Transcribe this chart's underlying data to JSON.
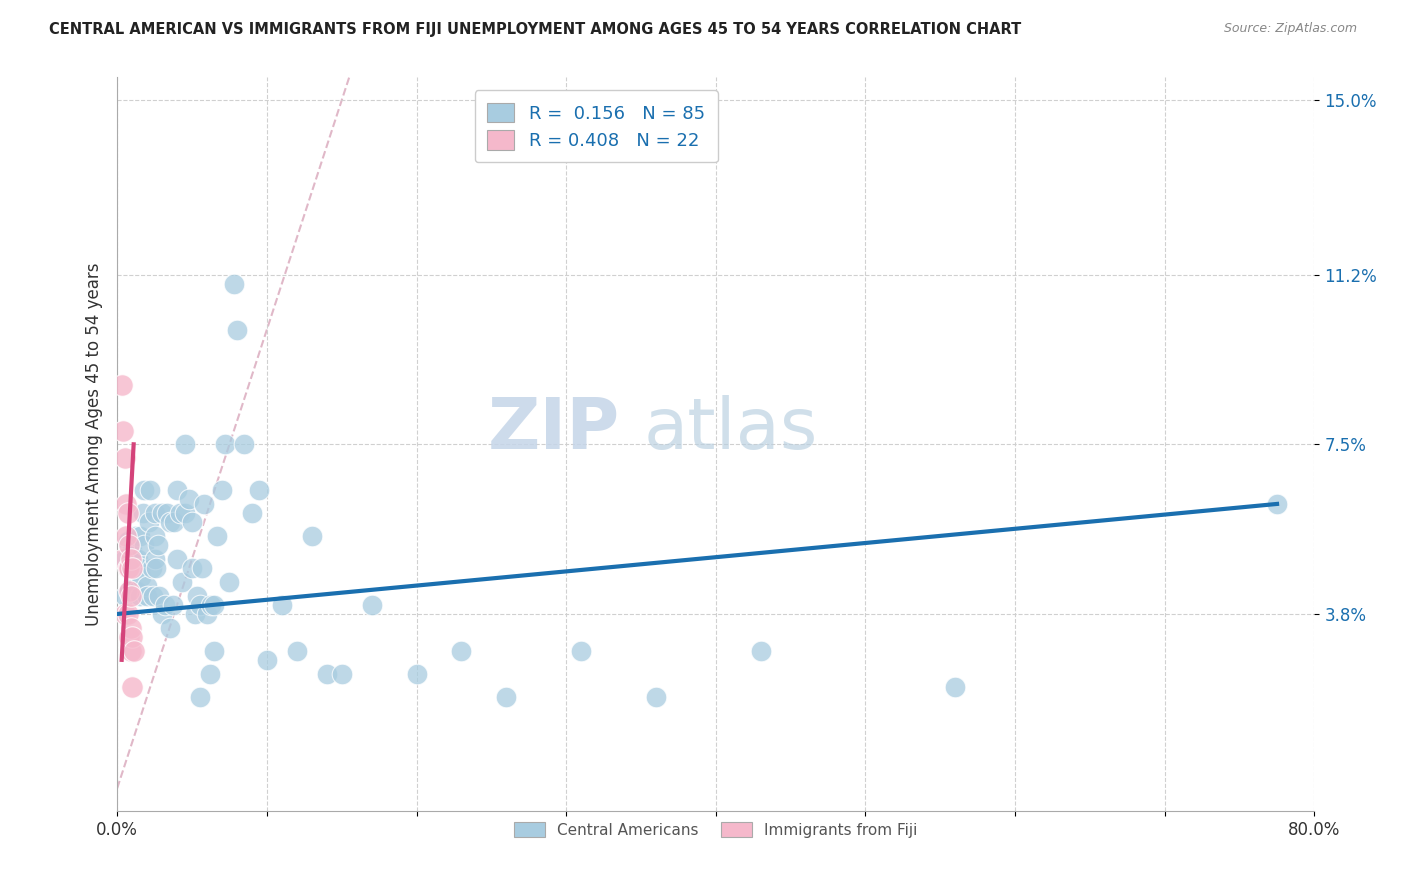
{
  "title": "CENTRAL AMERICAN VS IMMIGRANTS FROM FIJI UNEMPLOYMENT AMONG AGES 45 TO 54 YEARS CORRELATION CHART",
  "source": "Source: ZipAtlas.com",
  "ylabel": "Unemployment Among Ages 45 to 54 years",
  "legend_bottom": [
    "Central Americans",
    "Immigrants from Fiji"
  ],
  "xlim": [
    0.0,
    0.8
  ],
  "ylim": [
    -0.005,
    0.155
  ],
  "yticks": [
    0.038,
    0.075,
    0.112,
    0.15
  ],
  "ytick_labels": [
    "3.8%",
    "7.5%",
    "11.2%",
    "15.0%"
  ],
  "xticks": [
    0.0,
    0.1,
    0.2,
    0.3,
    0.4,
    0.5,
    0.6,
    0.7,
    0.8
  ],
  "xtick_labels": [
    "0.0%",
    "",
    "",
    "",
    "",
    "",
    "",
    "",
    "80.0%"
  ],
  "R_blue": 0.156,
  "N_blue": 85,
  "R_pink": 0.408,
  "N_pink": 22,
  "blue_color": "#a8cce0",
  "pink_color": "#f5b8cb",
  "blue_line_color": "#1a6faf",
  "pink_line_color": "#d4437a",
  "diagonal_color": "#e0b8c8",
  "watermark_zip": "ZIP",
  "watermark_atlas": "atlas",
  "blue_scatter_x": [
    0.005,
    0.005,
    0.007,
    0.008,
    0.008,
    0.009,
    0.01,
    0.01,
    0.01,
    0.01,
    0.012,
    0.012,
    0.013,
    0.014,
    0.015,
    0.015,
    0.015,
    0.016,
    0.017,
    0.018,
    0.018,
    0.02,
    0.02,
    0.021,
    0.022,
    0.023,
    0.024,
    0.025,
    0.025,
    0.025,
    0.026,
    0.027,
    0.028,
    0.03,
    0.03,
    0.032,
    0.033,
    0.035,
    0.035,
    0.037,
    0.038,
    0.04,
    0.04,
    0.042,
    0.043,
    0.045,
    0.045,
    0.048,
    0.05,
    0.05,
    0.052,
    0.053,
    0.055,
    0.055,
    0.057,
    0.058,
    0.06,
    0.062,
    0.063,
    0.065,
    0.065,
    0.067,
    0.07,
    0.072,
    0.075,
    0.078,
    0.08,
    0.085,
    0.09,
    0.095,
    0.1,
    0.11,
    0.12,
    0.13,
    0.14,
    0.15,
    0.17,
    0.2,
    0.23,
    0.26,
    0.31,
    0.36,
    0.43,
    0.56,
    0.775
  ],
  "blue_scatter_y": [
    0.05,
    0.042,
    0.054,
    0.048,
    0.043,
    0.052,
    0.05,
    0.052,
    0.048,
    0.044,
    0.05,
    0.055,
    0.043,
    0.05,
    0.055,
    0.048,
    0.042,
    0.046,
    0.06,
    0.065,
    0.053,
    0.044,
    0.042,
    0.058,
    0.065,
    0.048,
    0.042,
    0.05,
    0.055,
    0.06,
    0.048,
    0.053,
    0.042,
    0.038,
    0.06,
    0.04,
    0.06,
    0.035,
    0.058,
    0.04,
    0.058,
    0.065,
    0.05,
    0.06,
    0.045,
    0.06,
    0.075,
    0.063,
    0.048,
    0.058,
    0.038,
    0.042,
    0.02,
    0.04,
    0.048,
    0.062,
    0.038,
    0.025,
    0.04,
    0.03,
    0.04,
    0.055,
    0.065,
    0.075,
    0.045,
    0.11,
    0.1,
    0.075,
    0.06,
    0.065,
    0.028,
    0.04,
    0.03,
    0.055,
    0.025,
    0.025,
    0.04,
    0.025,
    0.03,
    0.02,
    0.03,
    0.02,
    0.03,
    0.022,
    0.062
  ],
  "pink_scatter_x": [
    0.003,
    0.004,
    0.004,
    0.005,
    0.005,
    0.006,
    0.006,
    0.007,
    0.007,
    0.007,
    0.008,
    0.008,
    0.008,
    0.008,
    0.009,
    0.009,
    0.009,
    0.009,
    0.01,
    0.01,
    0.01,
    0.011
  ],
  "pink_scatter_y": [
    0.088,
    0.078,
    0.05,
    0.072,
    0.038,
    0.062,
    0.055,
    0.06,
    0.048,
    0.038,
    0.053,
    0.048,
    0.043,
    0.033,
    0.05,
    0.042,
    0.035,
    0.03,
    0.048,
    0.033,
    0.022,
    0.03
  ],
  "blue_line_x": [
    0.0,
    0.775
  ],
  "blue_line_y": [
    0.038,
    0.062
  ],
  "pink_line_x": [
    0.003,
    0.011
  ],
  "pink_line_y": [
    0.028,
    0.075
  ],
  "diag_line_x": [
    0.0,
    0.155
  ],
  "diag_line_y": [
    0.0,
    0.155
  ]
}
